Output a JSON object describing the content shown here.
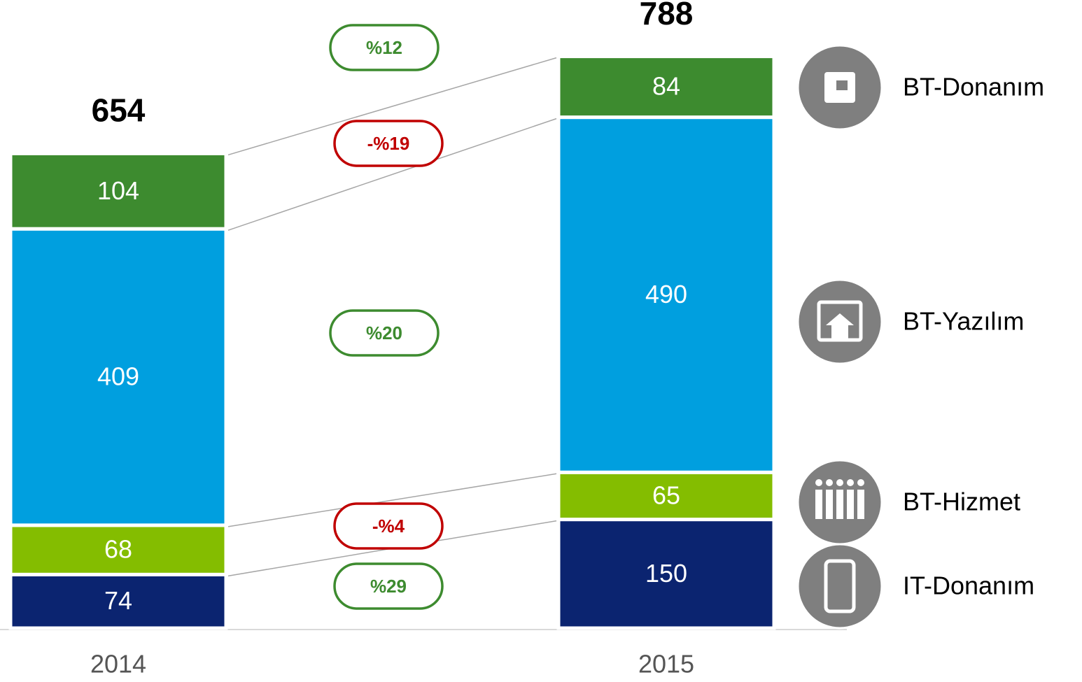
{
  "chart_data": {
    "type": "stacked-bar",
    "categories": [
      "2014",
      "2015"
    ],
    "series": [
      {
        "name": "IT-Donanım",
        "color": "#0b2470",
        "values": [
          74,
          150
        ]
      },
      {
        "name": "BT-Hizmet",
        "color": "#84bd00",
        "values": [
          68,
          65
        ]
      },
      {
        "name": "BT-Yazılım",
        "color": "#009fdf",
        "values": [
          409,
          490
        ]
      },
      {
        "name": "BT-Donanım",
        "color": "#3d8b2f",
        "values": [
          104,
          84
        ]
      }
    ],
    "totals": [
      654,
      788
    ],
    "annotations": [
      {
        "text": "%12",
        "color": "#3d8b2f"
      },
      {
        "text": "-%19",
        "color": "#c00000"
      },
      {
        "text": "%20",
        "color": "#3d8b2f"
      },
      {
        "text": "-%4",
        "color": "#c00000"
      },
      {
        "text": "%29",
        "color": "#3d8b2f"
      }
    ]
  }
}
